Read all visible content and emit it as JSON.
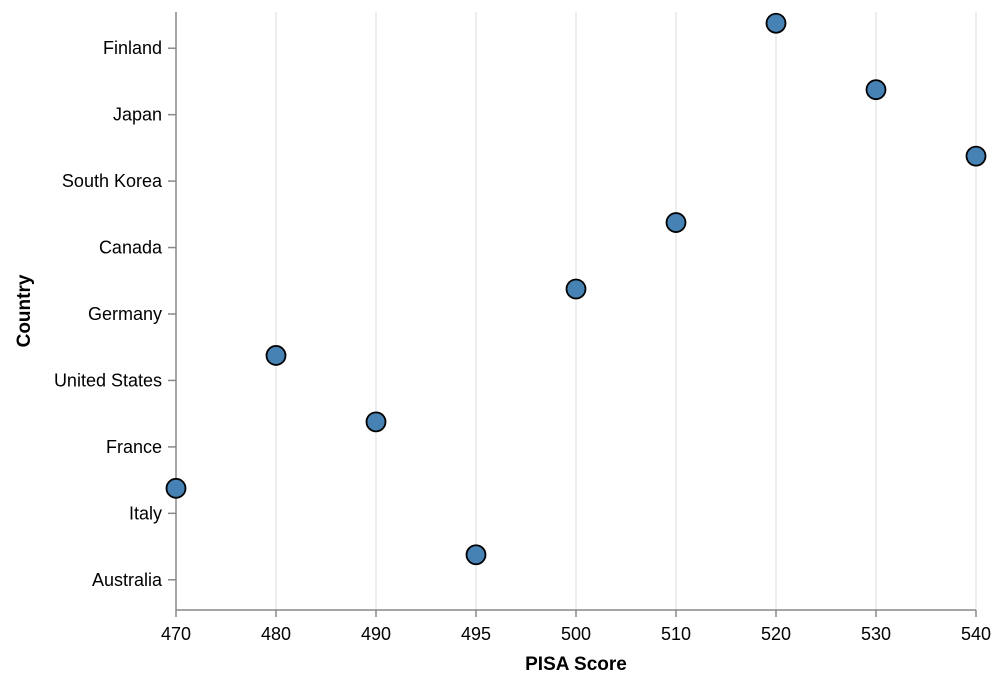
{
  "chart_data": {
    "type": "scatter",
    "xlabel": "PISA Score",
    "ylabel": "Country",
    "x_ticks": [
      "470",
      "480",
      "490",
      "495",
      "500",
      "510",
      "520",
      "530",
      "540"
    ],
    "categories": [
      "Finland",
      "Japan",
      "South Korea",
      "Canada",
      "Germany",
      "United States",
      "France",
      "Italy",
      "Australia"
    ],
    "points": [
      {
        "country": "Finland",
        "score": 520
      },
      {
        "country": "Japan",
        "score": 530
      },
      {
        "country": "South Korea",
        "score": 540
      },
      {
        "country": "Canada",
        "score": 510
      },
      {
        "country": "Germany",
        "score": 500
      },
      {
        "country": "United States",
        "score": 480
      },
      {
        "country": "France",
        "score": 490
      },
      {
        "country": "Italy",
        "score": 470
      },
      {
        "country": "Australia",
        "score": 495
      }
    ],
    "x_scale": "ordinal",
    "grid": "vertical",
    "legend": "none",
    "colors": {
      "point_fill": "#4682b4",
      "point_stroke": "#000000",
      "grid": "#dddddd",
      "axis": "#888888"
    }
  }
}
